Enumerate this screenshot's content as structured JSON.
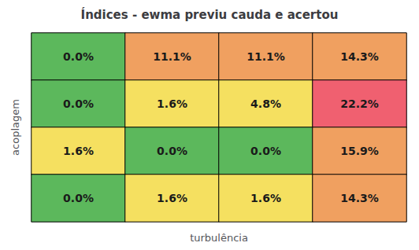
{
  "chart_data": {
    "type": "heatmap",
    "title": "Índices - ewma previu cauda e acertou",
    "xlabel": "turbulência",
    "ylabel": "acoplagem",
    "values": [
      [
        0.0,
        11.1,
        11.1,
        14.3
      ],
      [
        0.0,
        1.6,
        4.8,
        22.2
      ],
      [
        1.6,
        0.0,
        0.0,
        15.9
      ],
      [
        0.0,
        1.6,
        1.6,
        14.3
      ]
    ],
    "value_labels": [
      [
        "0.0%",
        "11.1%",
        "11.1%",
        "14.3%"
      ],
      [
        "0.0%",
        "1.6%",
        "4.8%",
        "22.2%"
      ],
      [
        "1.6%",
        "0.0%",
        "0.0%",
        "15.9%"
      ],
      [
        "0.0%",
        "1.6%",
        "1.6%",
        "14.3%"
      ]
    ],
    "colors": [
      [
        "#5cb85c",
        "#f0a060",
        "#f0a060",
        "#f0a060"
      ],
      [
        "#5cb85c",
        "#f5e060",
        "#f5e060",
        "#f06070"
      ],
      [
        "#f5e060",
        "#5cb85c",
        "#5cb85c",
        "#f0a060"
      ],
      [
        "#5cb85c",
        "#f5e060",
        "#f5e060",
        "#f0a060"
      ]
    ],
    "data_labels": true,
    "tick_labels": false
  }
}
